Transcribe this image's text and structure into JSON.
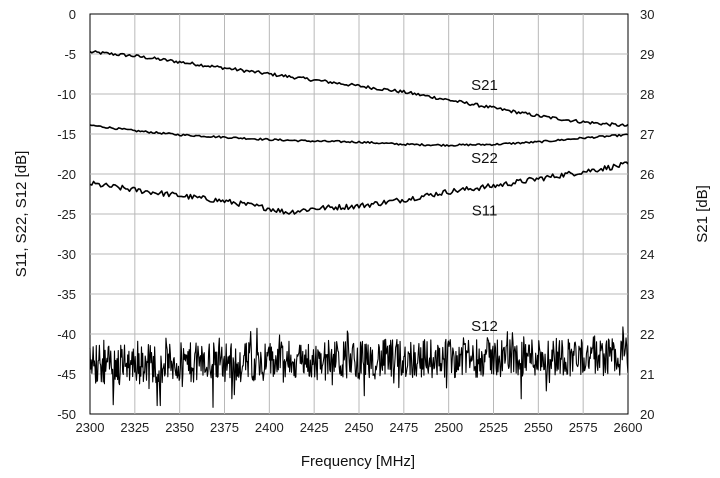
{
  "chart_data": {
    "type": "line",
    "title": "",
    "xlabel": "Frequency [MHz]",
    "ylabel_left": "S11, S22, S12 [dB]",
    "ylabel_right": "S21 [dB]",
    "xlim": [
      2300,
      2600
    ],
    "ylim_left": [
      -50,
      0
    ],
    "ylim_right": [
      20,
      30
    ],
    "x_ticks": [
      "2300",
      "2325",
      "2350",
      "2375",
      "2400",
      "2425",
      "2450",
      "2475",
      "2500",
      "2525",
      "2550",
      "2575",
      "2600"
    ],
    "y_ticks_left": [
      "0",
      "-5",
      "-10",
      "-15",
      "-20",
      "-25",
      "-30",
      "-35",
      "-40",
      "-45",
      "-50"
    ],
    "y_ticks_right": [
      "30",
      "29",
      "28",
      "27",
      "26",
      "25",
      "24",
      "23",
      "22",
      "21",
      "20"
    ],
    "grid": true,
    "series": [
      {
        "name": "S21",
        "axis": "right",
        "color": "#000000",
        "x": [
          2300,
          2325,
          2350,
          2375,
          2400,
          2425,
          2450,
          2475,
          2500,
          2525,
          2550,
          2575,
          2600
        ],
        "values": [
          29.05,
          28.95,
          28.8,
          28.65,
          28.5,
          28.35,
          28.2,
          28.05,
          27.85,
          27.65,
          27.45,
          27.3,
          27.2
        ]
      },
      {
        "name": "S22",
        "axis": "left",
        "color": "#000000",
        "x": [
          2300,
          2325,
          2350,
          2375,
          2400,
          2425,
          2450,
          2475,
          2500,
          2525,
          2550,
          2575,
          2600
        ],
        "values": [
          -13.9,
          -14.6,
          -15.1,
          -15.4,
          -15.7,
          -15.9,
          -16.0,
          -16.3,
          -16.4,
          -16.3,
          -16.0,
          -15.5,
          -15.1
        ]
      },
      {
        "name": "S11",
        "axis": "left",
        "color": "#000000",
        "x": [
          2300,
          2325,
          2350,
          2375,
          2400,
          2410,
          2425,
          2450,
          2475,
          2500,
          2525,
          2550,
          2575,
          2600
        ],
        "values": [
          -21.2,
          -22.0,
          -22.7,
          -23.4,
          -24.3,
          -24.8,
          -24.3,
          -24.0,
          -23.2,
          -22.2,
          -21.5,
          -20.6,
          -19.7,
          -18.8
        ]
      },
      {
        "name": "S12",
        "axis": "left",
        "color": "#000000",
        "x": [
          2300,
          2350,
          2400,
          2450,
          2500,
          2550,
          2600
        ],
        "values": [
          -43.8,
          -43.6,
          -43.4,
          -43.2,
          -43.0,
          -42.8,
          -42.7
        ],
        "noise_amplitude_db": 2.5
      }
    ]
  }
}
